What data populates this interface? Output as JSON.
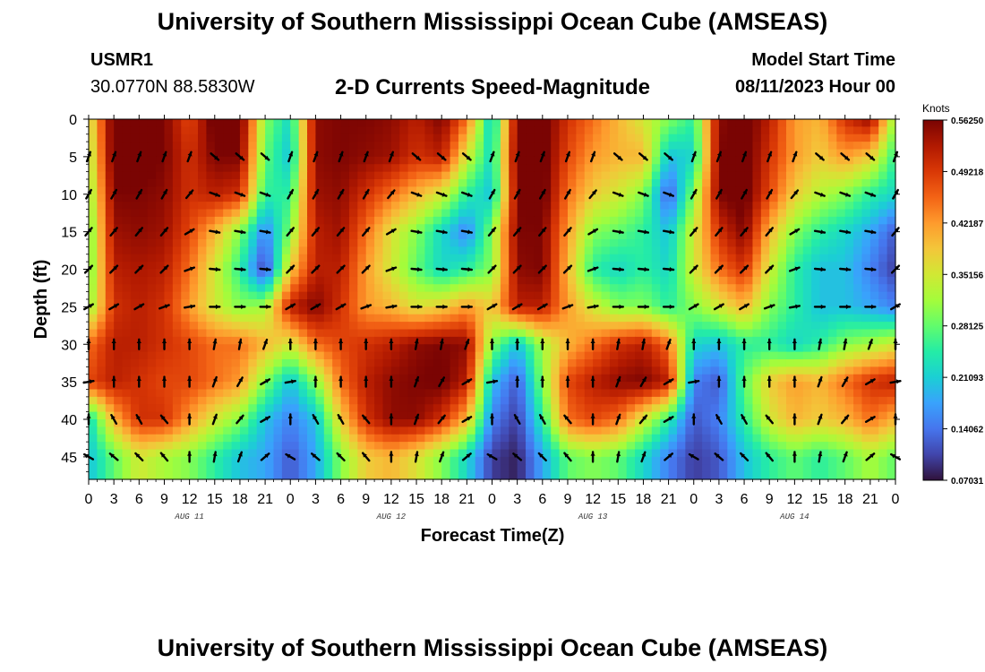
{
  "header": {
    "title": "University of Southern Mississippi Ocean Cube (AMSEAS)",
    "station": "USMR1",
    "coords": "30.0770N  88.5830W",
    "subtitle": "2-D Currents Speed-Magnitude",
    "model_label": "Model Start Time",
    "model_time": "08/11/2023 Hour 00"
  },
  "footer": {
    "title": "University of Southern Mississippi Ocean Cube (AMSEAS)"
  },
  "colorbar": {
    "unit": "Knots",
    "tick_labels": [
      "0.56250",
      "0.49218",
      "0.42187",
      "0.35156",
      "0.28125",
      "0.21093",
      "0.14062",
      "0.07031"
    ],
    "colors": [
      "#30123b",
      "#4145ab",
      "#4675ed",
      "#39a2fc",
      "#1bcfd4",
      "#24eca6",
      "#61fc6c",
      "#a4fc3b",
      "#d1e834",
      "#f3c63a",
      "#fe9b2d",
      "#f36315",
      "#d93806",
      "#b11901",
      "#7a0403"
    ]
  },
  "chart_data": {
    "type": "heatmap",
    "title": "2-D Currents Speed-Magnitude",
    "xlabel": "Forecast Time(Z)",
    "ylabel": "Depth (ft)",
    "xlim": [
      0,
      96
    ],
    "ylim": [
      48,
      0
    ],
    "x_tick_labels": [
      "0",
      "3",
      "6",
      "9",
      "12",
      "15",
      "18",
      "21",
      "0",
      "3",
      "6",
      "9",
      "12",
      "15",
      "18",
      "21",
      "0",
      "3",
      "6",
      "9",
      "12",
      "15",
      "18",
      "21",
      "0",
      "3",
      "6",
      "9",
      "12",
      "15",
      "18",
      "21",
      "0"
    ],
    "day_labels": [
      {
        "hour": 12,
        "label": "AUG 11"
      },
      {
        "hour": 36,
        "label": "AUG 12"
      },
      {
        "hour": 60,
        "label": "AUG 13"
      },
      {
        "hour": 84,
        "label": "AUG 14"
      }
    ],
    "y_ticks": [
      0,
      5,
      10,
      15,
      20,
      25,
      30,
      35,
      40,
      45
    ],
    "colorbar_range": [
      0.07031,
      0.5625
    ],
    "hours": [
      0,
      3,
      6,
      9,
      12,
      15,
      18,
      21,
      24,
      27,
      30,
      33,
      36,
      39,
      42,
      45,
      48,
      51,
      54,
      57,
      60,
      63,
      66,
      69,
      72,
      75,
      78,
      81,
      84,
      87,
      90,
      93,
      96
    ],
    "depths": [
      0,
      5,
      10,
      15,
      20,
      25,
      30,
      35,
      40,
      45
    ],
    "speed_knots": [
      [
        0.34,
        0.58,
        0.58,
        0.56,
        0.48,
        0.58,
        0.58,
        0.3,
        0.22,
        0.55,
        0.56,
        0.56,
        0.55,
        0.52,
        0.56,
        0.45,
        0.2,
        0.56,
        0.58,
        0.5,
        0.45,
        0.4,
        0.35,
        0.3,
        0.25,
        0.55,
        0.58,
        0.52,
        0.42,
        0.4,
        0.5,
        0.55,
        0.3
      ],
      [
        0.32,
        0.58,
        0.58,
        0.56,
        0.5,
        0.56,
        0.56,
        0.28,
        0.2,
        0.55,
        0.56,
        0.55,
        0.54,
        0.5,
        0.52,
        0.35,
        0.22,
        0.57,
        0.58,
        0.48,
        0.42,
        0.4,
        0.4,
        0.2,
        0.22,
        0.56,
        0.58,
        0.5,
        0.42,
        0.38,
        0.42,
        0.38,
        0.25
      ],
      [
        0.3,
        0.56,
        0.56,
        0.55,
        0.5,
        0.52,
        0.5,
        0.25,
        0.25,
        0.54,
        0.55,
        0.5,
        0.45,
        0.4,
        0.35,
        0.25,
        0.2,
        0.56,
        0.58,
        0.45,
        0.38,
        0.35,
        0.3,
        0.12,
        0.3,
        0.56,
        0.58,
        0.48,
        0.38,
        0.33,
        0.3,
        0.25,
        0.22
      ],
      [
        0.28,
        0.54,
        0.55,
        0.54,
        0.48,
        0.4,
        0.3,
        0.15,
        0.3,
        0.52,
        0.54,
        0.45,
        0.36,
        0.3,
        0.22,
        0.15,
        0.3,
        0.56,
        0.56,
        0.42,
        0.3,
        0.28,
        0.25,
        0.2,
        0.35,
        0.5,
        0.56,
        0.4,
        0.3,
        0.25,
        0.22,
        0.18,
        0.12
      ],
      [
        0.28,
        0.52,
        0.53,
        0.52,
        0.45,
        0.35,
        0.25,
        0.1,
        0.38,
        0.52,
        0.52,
        0.42,
        0.35,
        0.28,
        0.22,
        0.25,
        0.3,
        0.55,
        0.56,
        0.4,
        0.25,
        0.22,
        0.25,
        0.22,
        0.35,
        0.45,
        0.5,
        0.35,
        0.25,
        0.2,
        0.2,
        0.15,
        0.1
      ],
      [
        0.3,
        0.5,
        0.52,
        0.5,
        0.42,
        0.35,
        0.3,
        0.32,
        0.52,
        0.56,
        0.5,
        0.42,
        0.4,
        0.36,
        0.38,
        0.42,
        0.38,
        0.52,
        0.52,
        0.42,
        0.35,
        0.3,
        0.3,
        0.25,
        0.3,
        0.35,
        0.4,
        0.3,
        0.25,
        0.2,
        0.2,
        0.18,
        0.15
      ],
      [
        0.45,
        0.52,
        0.52,
        0.5,
        0.48,
        0.45,
        0.45,
        0.4,
        0.35,
        0.45,
        0.48,
        0.5,
        0.52,
        0.55,
        0.56,
        0.55,
        0.3,
        0.2,
        0.32,
        0.4,
        0.45,
        0.5,
        0.52,
        0.45,
        0.22,
        0.2,
        0.25,
        0.25,
        0.22,
        0.25,
        0.3,
        0.32,
        0.35
      ],
      [
        0.48,
        0.52,
        0.5,
        0.48,
        0.48,
        0.45,
        0.42,
        0.3,
        0.2,
        0.3,
        0.45,
        0.52,
        0.55,
        0.56,
        0.57,
        0.52,
        0.2,
        0.12,
        0.3,
        0.48,
        0.52,
        0.55,
        0.56,
        0.52,
        0.15,
        0.12,
        0.28,
        0.38,
        0.42,
        0.4,
        0.45,
        0.5,
        0.52
      ],
      [
        0.22,
        0.4,
        0.5,
        0.5,
        0.42,
        0.35,
        0.3,
        0.2,
        0.15,
        0.2,
        0.38,
        0.5,
        0.55,
        0.55,
        0.5,
        0.4,
        0.15,
        0.1,
        0.25,
        0.45,
        0.48,
        0.45,
        0.35,
        0.25,
        0.12,
        0.15,
        0.25,
        0.35,
        0.4,
        0.38,
        0.4,
        0.45,
        0.4
      ],
      [
        0.2,
        0.28,
        0.35,
        0.32,
        0.3,
        0.25,
        0.2,
        0.18,
        0.12,
        0.18,
        0.3,
        0.38,
        0.4,
        0.36,
        0.3,
        0.22,
        0.1,
        0.08,
        0.18,
        0.28,
        0.3,
        0.28,
        0.22,
        0.15,
        0.1,
        0.12,
        0.2,
        0.25,
        0.28,
        0.25,
        0.28,
        0.32,
        0.28
      ]
    ],
    "direction_deg": [
      [
        20,
        20,
        20,
        20,
        20,
        130,
        130,
        130,
        20,
        20,
        20,
        20,
        20,
        130,
        130,
        130,
        20,
        20,
        20,
        20,
        20,
        130,
        130,
        130,
        20,
        20,
        20,
        20,
        20,
        130,
        130,
        130,
        20
      ],
      [
        20,
        20,
        20,
        20,
        20,
        130,
        130,
        130,
        20,
        20,
        20,
        20,
        20,
        130,
        130,
        130,
        20,
        20,
        20,
        20,
        20,
        130,
        130,
        130,
        20,
        20,
        20,
        20,
        20,
        130,
        130,
        130,
        20
      ],
      [
        30,
        30,
        30,
        30,
        40,
        110,
        110,
        110,
        30,
        30,
        30,
        30,
        40,
        110,
        110,
        110,
        30,
        30,
        30,
        30,
        40,
        110,
        110,
        110,
        30,
        30,
        30,
        30,
        40,
        110,
        110,
        110,
        30
      ],
      [
        40,
        40,
        40,
        40,
        60,
        100,
        100,
        100,
        40,
        40,
        40,
        40,
        60,
        100,
        100,
        100,
        40,
        40,
        40,
        40,
        60,
        100,
        100,
        100,
        40,
        40,
        40,
        40,
        60,
        100,
        100,
        100,
        40
      ],
      [
        45,
        45,
        45,
        45,
        70,
        95,
        95,
        95,
        45,
        45,
        45,
        45,
        70,
        95,
        95,
        95,
        45,
        45,
        45,
        45,
        70,
        95,
        95,
        95,
        45,
        45,
        45,
        45,
        70,
        95,
        95,
        95,
        45
      ],
      [
        60,
        60,
        60,
        70,
        80,
        90,
        90,
        90,
        60,
        60,
        60,
        70,
        80,
        90,
        90,
        90,
        60,
        60,
        60,
        70,
        80,
        90,
        90,
        90,
        60,
        60,
        60,
        70,
        80,
        90,
        90,
        90,
        60
      ],
      [
        0,
        0,
        0,
        0,
        0,
        10,
        10,
        20,
        0,
        0,
        0,
        0,
        0,
        10,
        10,
        20,
        0,
        0,
        0,
        0,
        0,
        10,
        10,
        20,
        0,
        0,
        0,
        0,
        0,
        10,
        10,
        20,
        0
      ],
      [
        80,
        0,
        0,
        0,
        0,
        20,
        30,
        60,
        80,
        0,
        0,
        0,
        0,
        20,
        30,
        60,
        80,
        0,
        0,
        0,
        0,
        20,
        30,
        60,
        80,
        0,
        0,
        0,
        0,
        20,
        30,
        60,
        80
      ],
      [
        0,
        330,
        330,
        320,
        0,
        20,
        40,
        60,
        0,
        330,
        330,
        320,
        0,
        20,
        40,
        60,
        0,
        330,
        330,
        320,
        0,
        20,
        40,
        60,
        0,
        330,
        330,
        320,
        0,
        20,
        40,
        60,
        0
      ],
      [
        300,
        310,
        315,
        320,
        0,
        10,
        20,
        50,
        300,
        310,
        315,
        320,
        0,
        10,
        20,
        50,
        300,
        310,
        315,
        320,
        0,
        10,
        20,
        50,
        300,
        310,
        315,
        320,
        0,
        10,
        20,
        50,
        300
      ]
    ]
  }
}
